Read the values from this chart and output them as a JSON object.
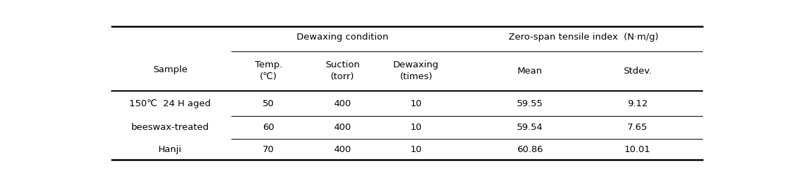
{
  "col_group1_label": "Dewaxing condition",
  "col_group2_label": "Zero-span tensile index  (N·m/g)",
  "sample_header": "Sample",
  "col_headers": [
    "Temp.\n(℃)",
    "Suction\n(torr)",
    "Dewaxing\n(times)",
    "Mean",
    "Stdev."
  ],
  "sample_label_lines": [
    "150℃  24 H aged",
    "beeswax-treated",
    "Hanji"
  ],
  "rows": [
    [
      "50",
      "400",
      "10",
      "59.55",
      "9.12"
    ],
    [
      "60",
      "400",
      "10",
      "59.54",
      "7.65"
    ],
    [
      "70",
      "400",
      "10",
      "60.86",
      "10.01"
    ]
  ],
  "background_color": "#ffffff",
  "text_color": "#000000",
  "fontsize": 9.5,
  "header_fontsize": 9.5,
  "line_thick": 1.8,
  "line_thin": 0.7,
  "line_mid": 1.4
}
